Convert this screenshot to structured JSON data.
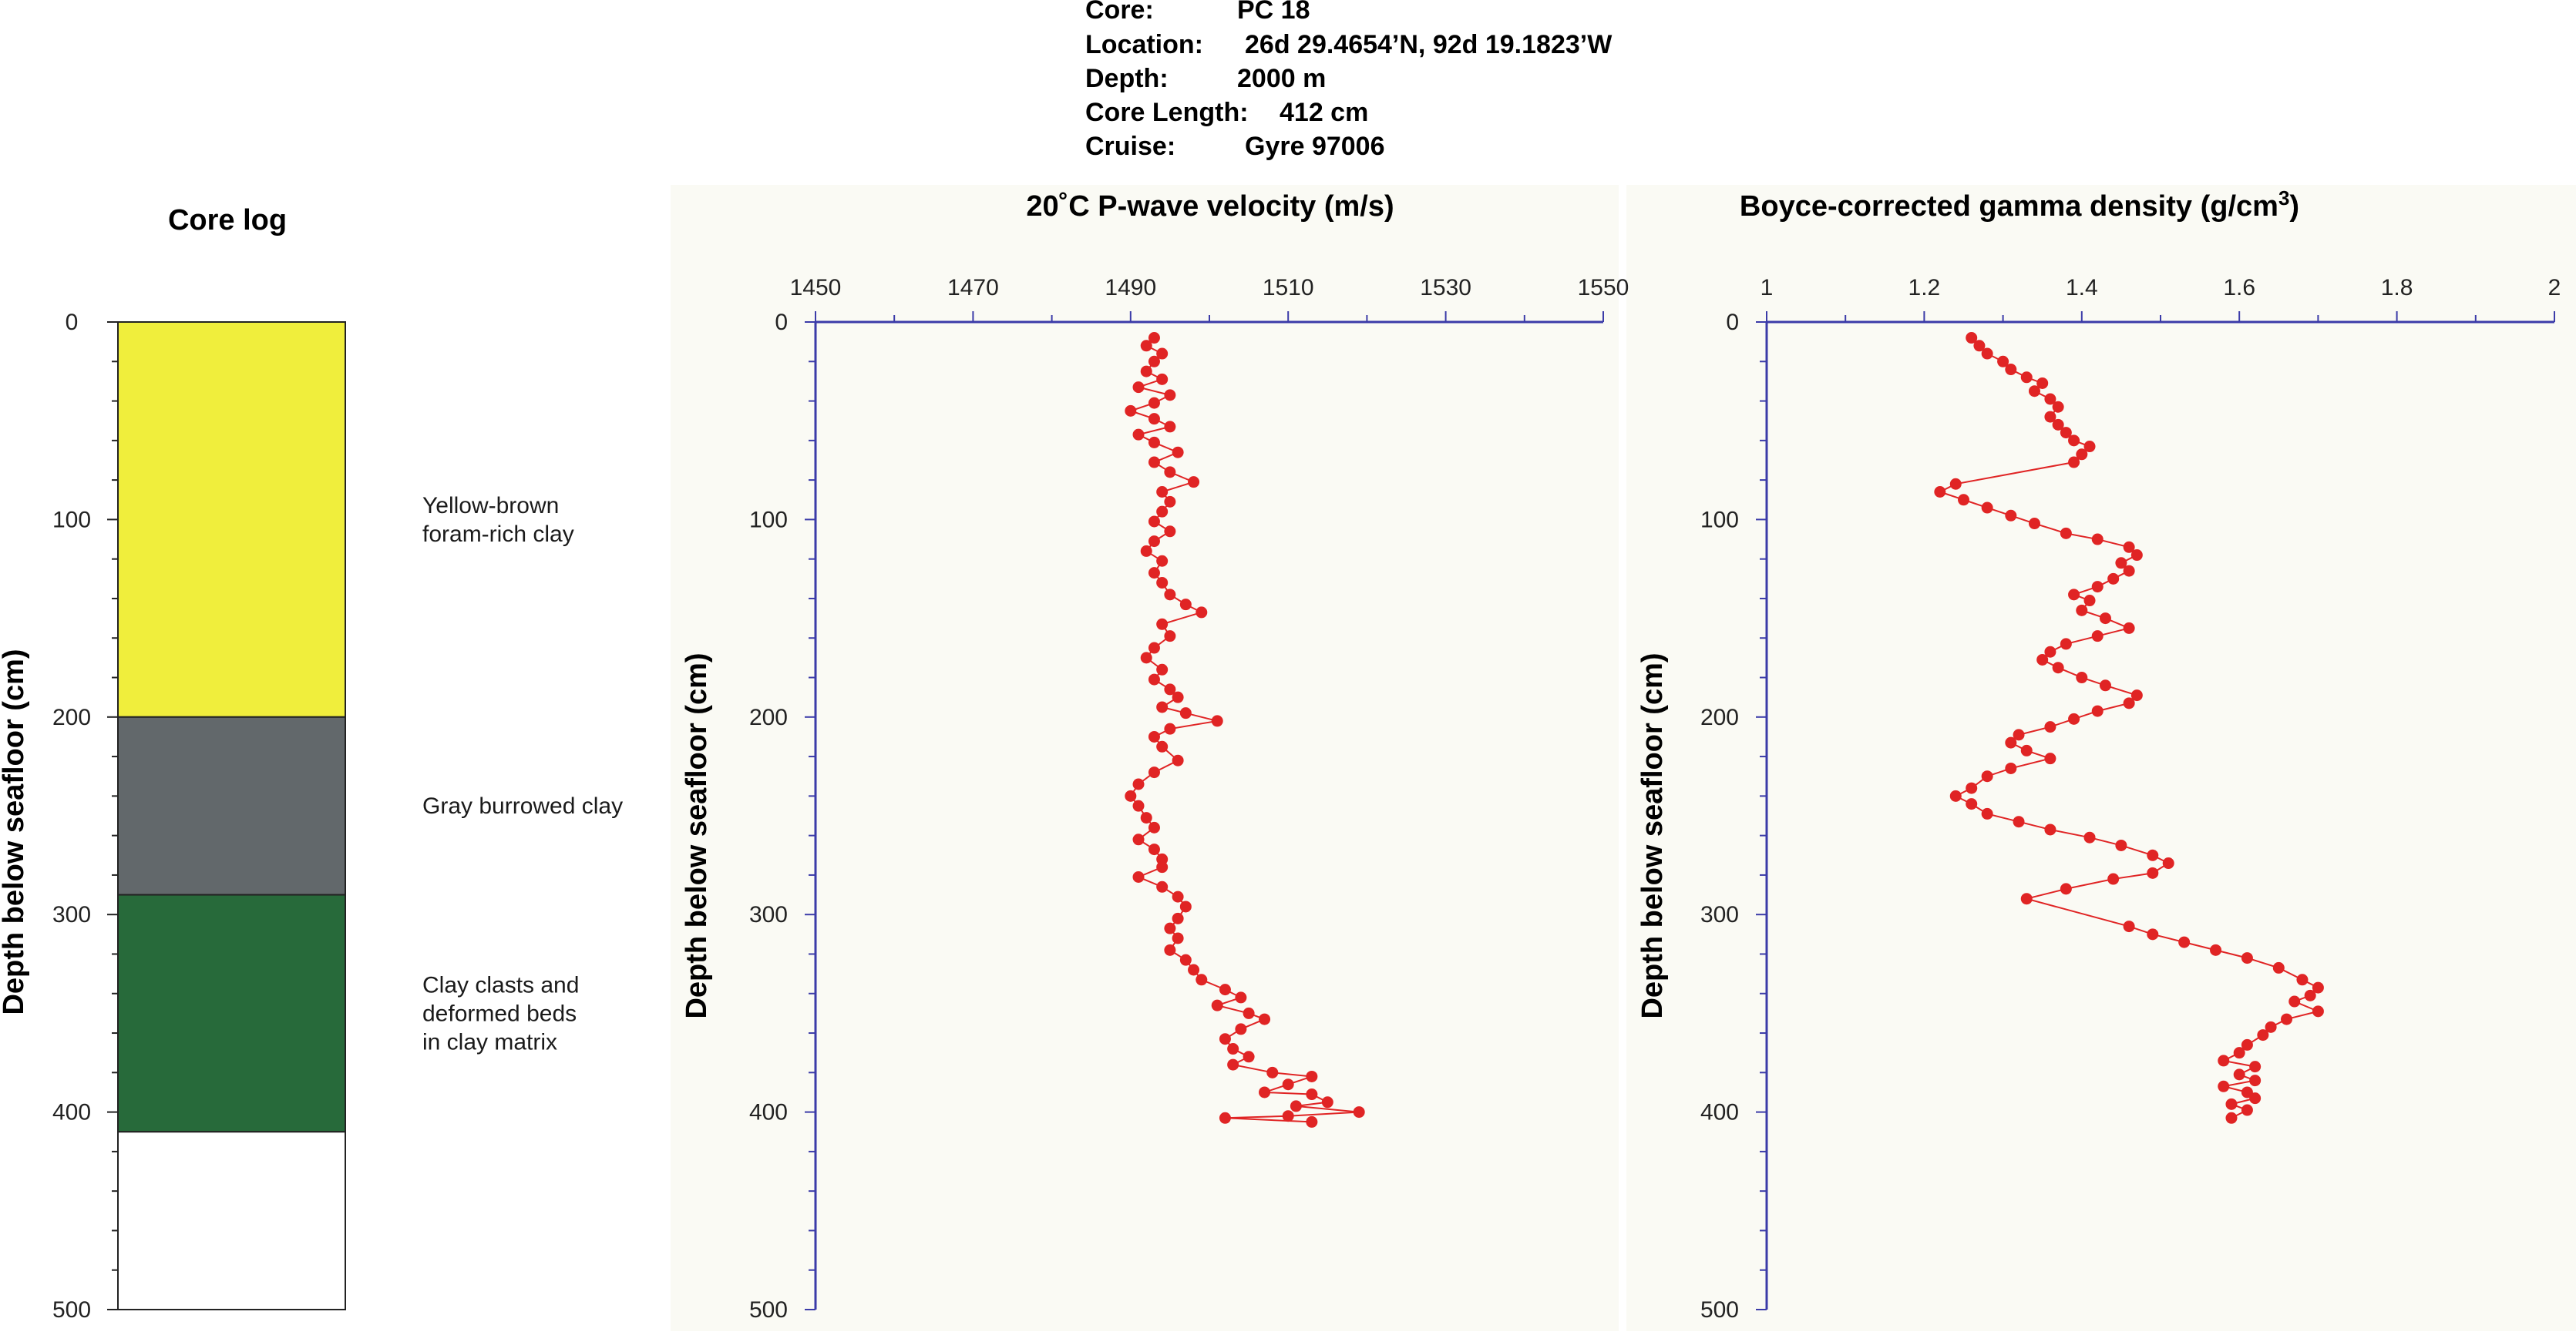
{
  "header": {
    "core_label": "Core:",
    "core_value": "PC 18",
    "location_label": "Location:",
    "location_value": "26d 29.4654’N, 92d 19.1823’W",
    "depth_label": "Depth:",
    "depth_value": "2000 m",
    "length_label": "Core Length:",
    "length_value": "412 cm",
    "cruise_label": "Cruise:",
    "cruise_value": "Gyre 97006"
  },
  "colors": {
    "axis": "#3b3ba8",
    "series": "#e02424",
    "lith_yellow": "#f0ee3c",
    "lith_gray": "#62686b",
    "lith_green": "#276a3a",
    "lith_white": "#ffffff",
    "plot_bg": "#fafaf4"
  },
  "chart_data": [
    {
      "type": "table",
      "title": "Core log",
      "ylabel": "Depth below seafloor (cm)",
      "ylim": [
        0,
        500
      ],
      "ytick_labels": [
        "0",
        "100",
        "200",
        "300",
        "400",
        "500"
      ],
      "units": [
        {
          "top": 0,
          "bottom": 200,
          "color": "yellow",
          "label": [
            "Yellow-brown",
            "foram-rich clay"
          ]
        },
        {
          "top": 200,
          "bottom": 290,
          "color": "gray",
          "label": [
            "Gray burrowed clay"
          ]
        },
        {
          "top": 290,
          "bottom": 410,
          "color": "green",
          "label": [
            "Clay clasts and",
            "deformed beds",
            "in clay matrix"
          ]
        },
        {
          "top": 410,
          "bottom": 500,
          "color": "white",
          "label": []
        }
      ]
    },
    {
      "type": "line",
      "title": "20˚C P-wave velocity (m/s)",
      "ylabel": "Depth below seafloor (cm)",
      "xlim": [
        1450,
        1550
      ],
      "ylim": [
        0,
        500
      ],
      "y_inverted": true,
      "x_axis_position": "top",
      "xtick_labels": [
        "1450",
        "1470",
        "1490",
        "1510",
        "1530",
        "1550"
      ],
      "ytick_labels": [
        "0",
        "100",
        "200",
        "300",
        "400",
        "500"
      ],
      "points": [
        [
          1493,
          8
        ],
        [
          1492,
          12
        ],
        [
          1494,
          16
        ],
        [
          1493,
          20
        ],
        [
          1492,
          25
        ],
        [
          1494,
          29
        ],
        [
          1491,
          33
        ],
        [
          1495,
          37
        ],
        [
          1493,
          41
        ],
        [
          1490,
          45
        ],
        [
          1493,
          49
        ],
        [
          1495,
          53
        ],
        [
          1491,
          57
        ],
        [
          1493,
          61
        ],
        [
          1496,
          66
        ],
        [
          1493,
          71
        ],
        [
          1495,
          76
        ],
        [
          1498,
          81
        ],
        [
          1494,
          86
        ],
        [
          1495,
          91
        ],
        [
          1494,
          96
        ],
        [
          1493,
          101
        ],
        [
          1495,
          106
        ],
        [
          1493,
          111
        ],
        [
          1492,
          116
        ],
        [
          1494,
          121
        ],
        [
          1493,
          127
        ],
        [
          1494,
          132
        ],
        [
          1495,
          138
        ],
        [
          1497,
          143
        ],
        [
          1499,
          147
        ],
        [
          1494,
          153
        ],
        [
          1495,
          159
        ],
        [
          1493,
          165
        ],
        [
          1492,
          170
        ],
        [
          1494,
          176
        ],
        [
          1493,
          181
        ],
        [
          1495,
          186
        ],
        [
          1496,
          190
        ],
        [
          1494,
          195
        ],
        [
          1497,
          198
        ],
        [
          1501,
          202
        ],
        [
          1495,
          206
        ],
        [
          1493,
          210
        ],
        [
          1494,
          215
        ],
        [
          1496,
          222
        ],
        [
          1493,
          228
        ],
        [
          1491,
          234
        ],
        [
          1490,
          240
        ],
        [
          1491,
          245
        ],
        [
          1492,
          251
        ],
        [
          1493,
          256
        ],
        [
          1491,
          262
        ],
        [
          1493,
          267
        ],
        [
          1494,
          272
        ],
        [
          1494,
          276
        ],
        [
          1491,
          281
        ],
        [
          1494,
          286
        ],
        [
          1496,
          291
        ],
        [
          1497,
          296
        ],
        [
          1496,
          302
        ],
        [
          1495,
          307
        ],
        [
          1496,
          312
        ],
        [
          1495,
          318
        ],
        [
          1497,
          323
        ],
        [
          1498,
          328
        ],
        [
          1499,
          333
        ],
        [
          1502,
          338
        ],
        [
          1504,
          342
        ],
        [
          1501,
          346
        ],
        [
          1505,
          350
        ],
        [
          1507,
          353
        ],
        [
          1504,
          358
        ],
        [
          1502,
          363
        ],
        [
          1503,
          368
        ],
        [
          1505,
          372
        ],
        [
          1503,
          376
        ],
        [
          1508,
          380
        ],
        [
          1513,
          382
        ],
        [
          1510,
          386
        ],
        [
          1507,
          390
        ],
        [
          1513,
          391
        ],
        [
          1515,
          395
        ],
        [
          1511,
          397
        ],
        [
          1519,
          400
        ],
        [
          1510,
          402
        ],
        [
          1502,
          403
        ],
        [
          1513,
          405
        ]
      ]
    },
    {
      "type": "line",
      "title": "Boyce-corrected gamma density (g/cm3)",
      "ylabel": "Depth below seafloor (cm)",
      "xlim": [
        1,
        2
      ],
      "ylim": [
        0,
        500
      ],
      "y_inverted": true,
      "x_axis_position": "top",
      "xtick_labels": [
        "1",
        "1.2",
        "1.4",
        "1.6",
        "1.8",
        "2"
      ],
      "ytick_labels": [
        "0",
        "100",
        "200",
        "300",
        "400",
        "500"
      ],
      "points": [
        [
          1.26,
          8
        ],
        [
          1.27,
          12
        ],
        [
          1.28,
          16
        ],
        [
          1.3,
          20
        ],
        [
          1.31,
          24
        ],
        [
          1.33,
          28
        ],
        [
          1.35,
          31
        ],
        [
          1.34,
          35
        ],
        [
          1.36,
          39
        ],
        [
          1.37,
          43
        ],
        [
          1.36,
          48
        ],
        [
          1.37,
          52
        ],
        [
          1.38,
          56
        ],
        [
          1.39,
          60
        ],
        [
          1.41,
          63
        ],
        [
          1.4,
          67
        ],
        [
          1.39,
          71
        ],
        [
          1.24,
          82
        ],
        [
          1.22,
          86
        ],
        [
          1.25,
          90
        ],
        [
          1.28,
          94
        ],
        [
          1.31,
          98
        ],
        [
          1.34,
          102
        ],
        [
          1.38,
          107
        ],
        [
          1.42,
          110
        ],
        [
          1.46,
          114
        ],
        [
          1.47,
          118
        ],
        [
          1.45,
          122
        ],
        [
          1.46,
          126
        ],
        [
          1.44,
          130
        ],
        [
          1.42,
          134
        ],
        [
          1.39,
          138
        ],
        [
          1.41,
          141
        ],
        [
          1.4,
          146
        ],
        [
          1.43,
          150
        ],
        [
          1.46,
          155
        ],
        [
          1.42,
          159
        ],
        [
          1.38,
          163
        ],
        [
          1.36,
          167
        ],
        [
          1.35,
          171
        ],
        [
          1.37,
          175
        ],
        [
          1.4,
          180
        ],
        [
          1.43,
          184
        ],
        [
          1.47,
          189
        ],
        [
          1.46,
          193
        ],
        [
          1.42,
          197
        ],
        [
          1.39,
          201
        ],
        [
          1.36,
          205
        ],
        [
          1.32,
          209
        ],
        [
          1.31,
          213
        ],
        [
          1.33,
          217
        ],
        [
          1.36,
          221
        ],
        [
          1.31,
          226
        ],
        [
          1.28,
          230
        ],
        [
          1.26,
          236
        ],
        [
          1.24,
          240
        ],
        [
          1.26,
          244
        ],
        [
          1.28,
          249
        ],
        [
          1.32,
          253
        ],
        [
          1.36,
          257
        ],
        [
          1.41,
          261
        ],
        [
          1.45,
          265
        ],
        [
          1.49,
          270
        ],
        [
          1.51,
          274
        ],
        [
          1.49,
          279
        ],
        [
          1.44,
          282
        ],
        [
          1.38,
          287
        ],
        [
          1.33,
          292
        ],
        [
          1.46,
          306
        ],
        [
          1.49,
          310
        ],
        [
          1.53,
          314
        ],
        [
          1.57,
          318
        ],
        [
          1.61,
          322
        ],
        [
          1.65,
          327
        ],
        [
          1.68,
          333
        ],
        [
          1.7,
          337
        ],
        [
          1.69,
          341
        ],
        [
          1.67,
          344
        ],
        [
          1.7,
          349
        ],
        [
          1.66,
          353
        ],
        [
          1.64,
          357
        ],
        [
          1.63,
          361
        ],
        [
          1.61,
          366
        ],
        [
          1.6,
          370
        ],
        [
          1.58,
          374
        ],
        [
          1.62,
          377
        ],
        [
          1.6,
          381
        ],
        [
          1.62,
          384
        ],
        [
          1.58,
          387
        ],
        [
          1.61,
          390
        ],
        [
          1.62,
          393
        ],
        [
          1.59,
          396
        ],
        [
          1.61,
          399
        ],
        [
          1.59,
          403
        ]
      ]
    }
  ]
}
